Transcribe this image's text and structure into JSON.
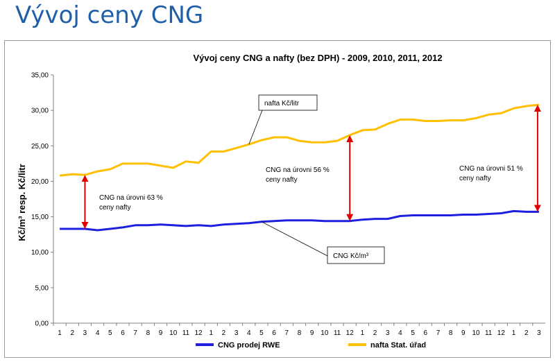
{
  "page": {
    "title": "Vývoj ceny CNG"
  },
  "chart_data": {
    "type": "line",
    "title": "Vývoj ceny  CNG a nafty (bez DPH) - 2009, 2010, 2011, 2012",
    "ylabel": "Kč/m³  resp.  Kč/litr",
    "xlabel": "",
    "ylim": [
      0,
      35
    ],
    "yticks": [
      "0,00",
      "5,00",
      "10,00",
      "15,00",
      "20,00",
      "25,00",
      "30,00",
      "35,00"
    ],
    "categories": [
      "1",
      "2",
      "3",
      "4",
      "5",
      "6",
      "7",
      "8",
      "9",
      "10",
      "11",
      "12",
      "1",
      "2",
      "3",
      "4",
      "5",
      "6",
      "7",
      "8",
      "9",
      "10",
      "11",
      "12",
      "1",
      "2",
      "3",
      "4",
      "5",
      "6",
      "7",
      "8",
      "9",
      "10",
      "11",
      "12",
      "1",
      "2",
      "3"
    ],
    "series": [
      {
        "name": "CNG prodej RWE",
        "color": "#1f1fe0",
        "values": [
          13.3,
          13.3,
          13.3,
          13.1,
          13.3,
          13.5,
          13.8,
          13.8,
          13.9,
          13.8,
          13.7,
          13.8,
          13.7,
          13.9,
          14.0,
          14.1,
          14.3,
          14.4,
          14.5,
          14.5,
          14.5,
          14.4,
          14.4,
          14.4,
          14.6,
          14.7,
          14.7,
          15.1,
          15.2,
          15.2,
          15.2,
          15.2,
          15.3,
          15.3,
          15.4,
          15.5,
          15.8,
          15.7,
          15.7
        ]
      },
      {
        "name": "nafta Stat. úřad",
        "color": "#ffc000",
        "values": [
          20.8,
          21.0,
          20.9,
          21.4,
          21.7,
          22.5,
          22.5,
          22.5,
          22.2,
          21.9,
          22.8,
          22.6,
          24.2,
          24.2,
          24.7,
          25.2,
          25.8,
          26.2,
          26.2,
          25.7,
          25.5,
          25.5,
          25.7,
          26.5,
          27.2,
          27.3,
          28.1,
          28.7,
          28.7,
          28.5,
          28.5,
          28.6,
          28.6,
          28.9,
          29.4,
          29.6,
          30.3,
          30.6,
          30.8
        ]
      }
    ],
    "arrows": [
      {
        "category_index": 2,
        "from": 13.3,
        "to": 20.9,
        "color": "#e00000"
      },
      {
        "category_index": 23,
        "from": 14.4,
        "to": 26.5,
        "color": "#e00000"
      },
      {
        "category_index": 38,
        "from": 15.7,
        "to": 30.8,
        "color": "#e00000"
      }
    ],
    "annotations": [
      {
        "lines": [
          "CNG na úrovni 63 %",
          "ceny nafty"
        ]
      },
      {
        "lines": [
          "CNG na úrovni 56 %",
          "ceny nafty"
        ]
      },
      {
        "lines": [
          "CNG na úrovni 51 %",
          "ceny nafty"
        ]
      }
    ],
    "callouts": [
      {
        "text": "nafta Kč/litr"
      },
      {
        "text": "CNG Kč/m³"
      }
    ],
    "legend": {
      "position": "bottom"
    },
    "grid": false
  }
}
